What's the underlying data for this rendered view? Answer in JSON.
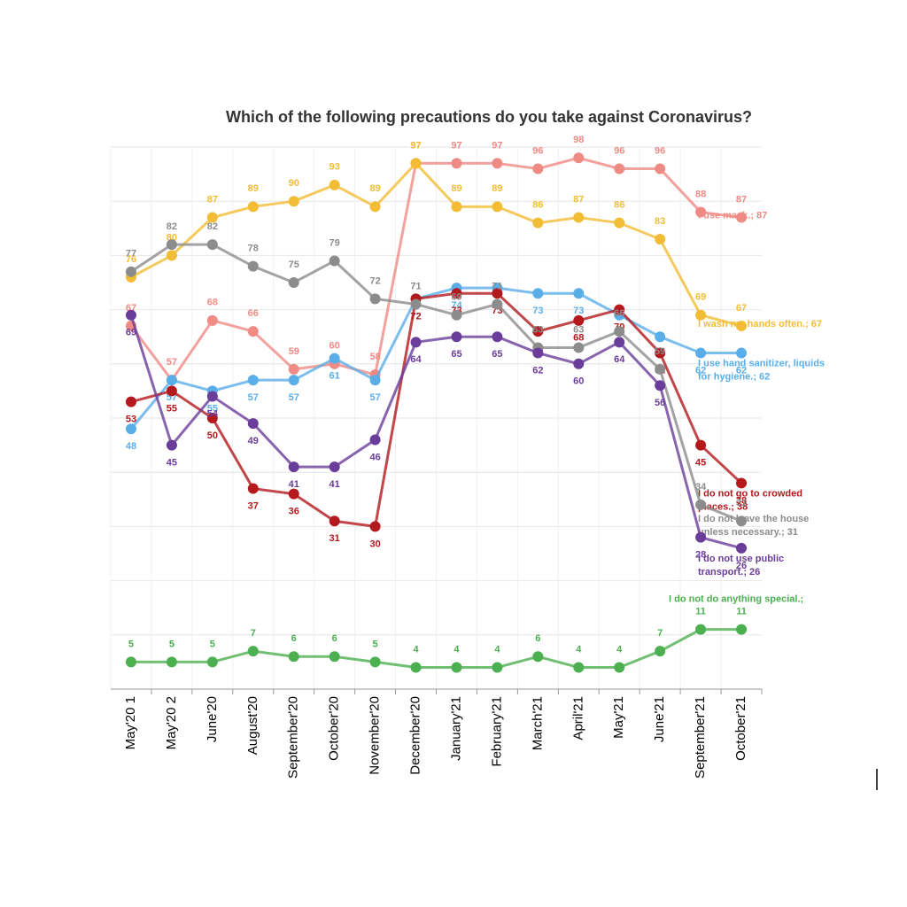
{
  "chart_data": {
    "type": "line",
    "title": "Which of the following precautions do you take against Coronavirus?",
    "categories": [
      "May'20 1",
      "May'20 2",
      "June'20",
      "August'20",
      "September'20",
      "October'20",
      "November'20",
      "December'20",
      "January'21",
      "February'21",
      "March'21",
      "April'21",
      "May'21",
      "June'21",
      "September'21",
      "October'21"
    ],
    "ylim": [
      0,
      100
    ],
    "yticks": [
      0,
      10,
      20,
      30,
      40,
      50,
      60,
      70,
      80,
      90,
      100
    ],
    "show_ytick_labels": false,
    "grid": true,
    "series": [
      {
        "name": "I use mask.",
        "color": "#f08a84",
        "values": [
          67,
          57,
          68,
          66,
          59,
          60,
          58,
          97,
          97,
          97,
          96,
          98,
          96,
          96,
          88,
          87
        ],
        "end_label": [
          "I use mask.; 87"
        ]
      },
      {
        "name": "I wash my hands often.",
        "color": "#f2bd35",
        "values": [
          76,
          80,
          87,
          89,
          90,
          93,
          89,
          97,
          89,
          89,
          86,
          87,
          86,
          83,
          69,
          67
        ],
        "end_label": [
          "I wash my hands often.; 67"
        ]
      },
      {
        "name": "I use hand sanitizer, liquids for hygiene.",
        "color": "#5aaee8",
        "values": [
          48,
          57,
          55,
          57,
          57,
          61,
          57,
          72,
          74,
          74,
          73,
          73,
          69,
          65,
          62,
          62
        ],
        "end_label": [
          "I use hand sanitizer, liquids",
          "for hygiene.; 62"
        ]
      },
      {
        "name": "I do not go to crowded places.",
        "color": "#b3191d",
        "values": [
          53,
          55,
          50,
          37,
          36,
          31,
          30,
          72,
          73,
          73,
          66,
          68,
          70,
          62,
          45,
          38
        ],
        "end_label": [
          "I do not go to crowded",
          "places.; 38"
        ]
      },
      {
        "name": "I do not leave the house unless necessary.",
        "color": "#8c8c8c",
        "values": [
          77,
          82,
          82,
          78,
          75,
          79,
          72,
          71,
          69,
          71,
          63,
          63,
          66,
          59,
          34,
          31
        ],
        "end_label": [
          "I do not leave the house",
          "unless necessary.; 31"
        ]
      },
      {
        "name": "I do not use public transport.",
        "color": "#6a3d9a",
        "values": [
          69,
          45,
          54,
          49,
          41,
          41,
          46,
          64,
          65,
          65,
          62,
          60,
          64,
          56,
          28,
          26
        ],
        "end_label": [
          "I do not use public",
          "transport.; 26"
        ]
      },
      {
        "name": "I do not do anything special.",
        "color": "#4caf50",
        "values": [
          5,
          5,
          5,
          7,
          6,
          6,
          5,
          4,
          4,
          4,
          6,
          4,
          4,
          7,
          11,
          11
        ],
        "end_label": [
          "I do not do anything special.;"
        ]
      }
    ]
  }
}
